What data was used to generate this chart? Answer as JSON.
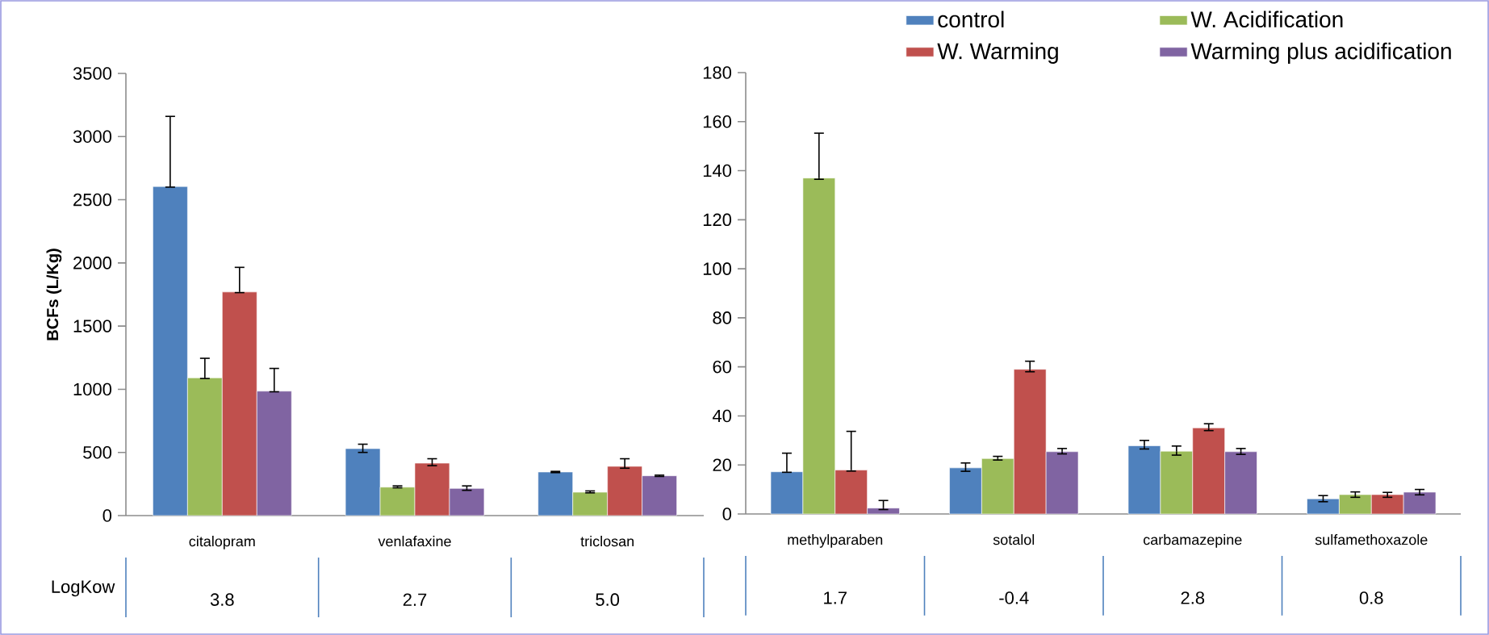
{
  "chart_data": [
    {
      "type": "bar",
      "ylabel": "BCFs (L/Kg)",
      "categories": [
        "citalopram",
        "venlafaxine",
        "triclosan"
      ],
      "ylim": [
        0,
        3500
      ],
      "yticks": [
        0,
        500,
        1000,
        1500,
        2000,
        2500,
        3000,
        3500
      ],
      "grid": false,
      "annotations": [
        "LogKow",
        "3.8",
        "2.7",
        "5.0"
      ],
      "series": [
        {
          "color": "#4f81bd",
          "values": [
            2605,
            530,
            345
          ],
          "errors": [
            [
              2600,
              3160
            ],
            [
              500,
              565
            ],
            [
              340,
              350
            ]
          ]
        },
        {
          "color": "#9bbb59",
          "values": [
            1090,
            225,
            185
          ],
          "errors": [
            [
              1085,
              1245
            ],
            [
              220,
              235
            ],
            [
              180,
              195
            ]
          ]
        },
        {
          "color": "#c0504d",
          "values": [
            1770,
            415,
            390
          ],
          "errors": [
            [
              1765,
              1965
            ],
            [
              395,
              450
            ],
            [
              375,
              450
            ]
          ]
        },
        {
          "color": "#8064a2",
          "values": [
            985,
            215,
            315
          ],
          "errors": [
            [
              980,
              1165
            ],
            [
              200,
              235
            ],
            [
              310,
              320
            ]
          ]
        }
      ]
    },
    {
      "type": "bar",
      "categories": [
        "methylparaben",
        "sotalol",
        "carbamazepine",
        "sulfamethoxazole"
      ],
      "ylim": [
        0,
        180
      ],
      "yticks": [
        0,
        20,
        40,
        60,
        80,
        100,
        120,
        140,
        160,
        180
      ],
      "grid": false,
      "legend": "top right",
      "annotations": [
        "1.7",
        "-0.4",
        "2.8",
        "0.8"
      ],
      "series": [
        {
          "name": "control",
          "color": "#4f81bd",
          "values": [
            17.2,
            18.8,
            27.8,
            6.2
          ],
          "errors": [
            [
              17,
              24.8
            ],
            [
              17.4,
              20.8
            ],
            [
              26.5,
              30
            ],
            [
              5,
              7.5
            ]
          ]
        },
        {
          "name": "W. Acidification",
          "color": "#9bbb59",
          "values": [
            137,
            22.6,
            25.6,
            7.9
          ],
          "errors": [
            [
              136.5,
              155.3
            ],
            [
              22,
              23.5
            ],
            [
              24,
              27.7
            ],
            [
              6.8,
              9
            ]
          ]
        },
        {
          "name": "W. Warming",
          "color": "#c0504d",
          "values": [
            17.9,
            59,
            35.1,
            7.9
          ],
          "errors": [
            [
              17.5,
              33.7
            ],
            [
              58,
              62.3
            ],
            [
              34,
              36.8
            ],
            [
              6.8,
              8.8
            ]
          ]
        },
        {
          "name": "Warming plus acidification",
          "color": "#8064a2",
          "values": [
            2.4,
            25.4,
            25.4,
            8.9
          ],
          "errors": [
            [
              1.8,
              5.5
            ],
            [
              24.5,
              26.7
            ],
            [
              24.3,
              26.7
            ],
            [
              7.8,
              10
            ]
          ]
        }
      ]
    }
  ]
}
